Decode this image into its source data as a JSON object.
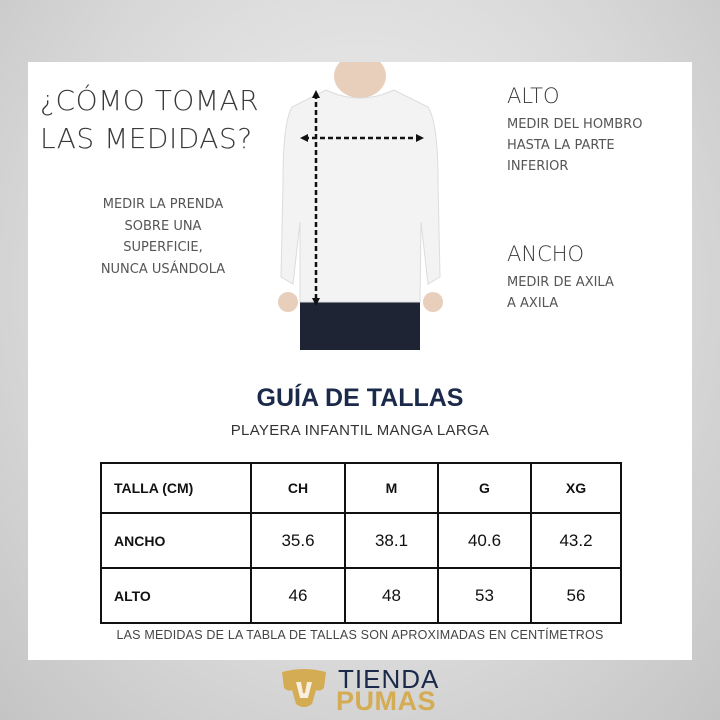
{
  "heading": [
    "¿CÓMO TOMAR",
    "LAS MEDIDAS?"
  ],
  "instruction": [
    "MEDIR LA PRENDA",
    "SOBRE UNA",
    "SUPERFICIE,",
    "NUNCA USÁNDOLA"
  ],
  "alto": {
    "title": "ALTO",
    "desc": [
      "MEDIR DEL HOMBRO",
      "HASTA LA PARTE",
      "INFERIOR"
    ]
  },
  "ancho": {
    "title": "ANCHO",
    "desc": [
      "MEDIR DE AXILA",
      "A AXILA"
    ]
  },
  "guide": {
    "title": "GUÍA DE TALLAS",
    "subtitle": "PLAYERA INFANTIL MANGA LARGA"
  },
  "table": {
    "headers": [
      "TALLA (CM)",
      "CH",
      "M",
      "G",
      "XG"
    ],
    "rows": [
      {
        "label": "ANCHO",
        "values": [
          "35.6",
          "38.1",
          "40.6",
          "43.2"
        ]
      },
      {
        "label": "ALTO",
        "values": [
          "46",
          "48",
          "53",
          "56"
        ]
      }
    ]
  },
  "footnote": "LAS MEDIDAS DE LA TABLA DE TALLAS SON APROXIMADAS EN CENTÍMETROS",
  "logo": {
    "line1": "TIENDA",
    "line2": "PUMAS"
  },
  "colors": {
    "navy": "#1b2a4a",
    "gold": "#d4ac54"
  }
}
